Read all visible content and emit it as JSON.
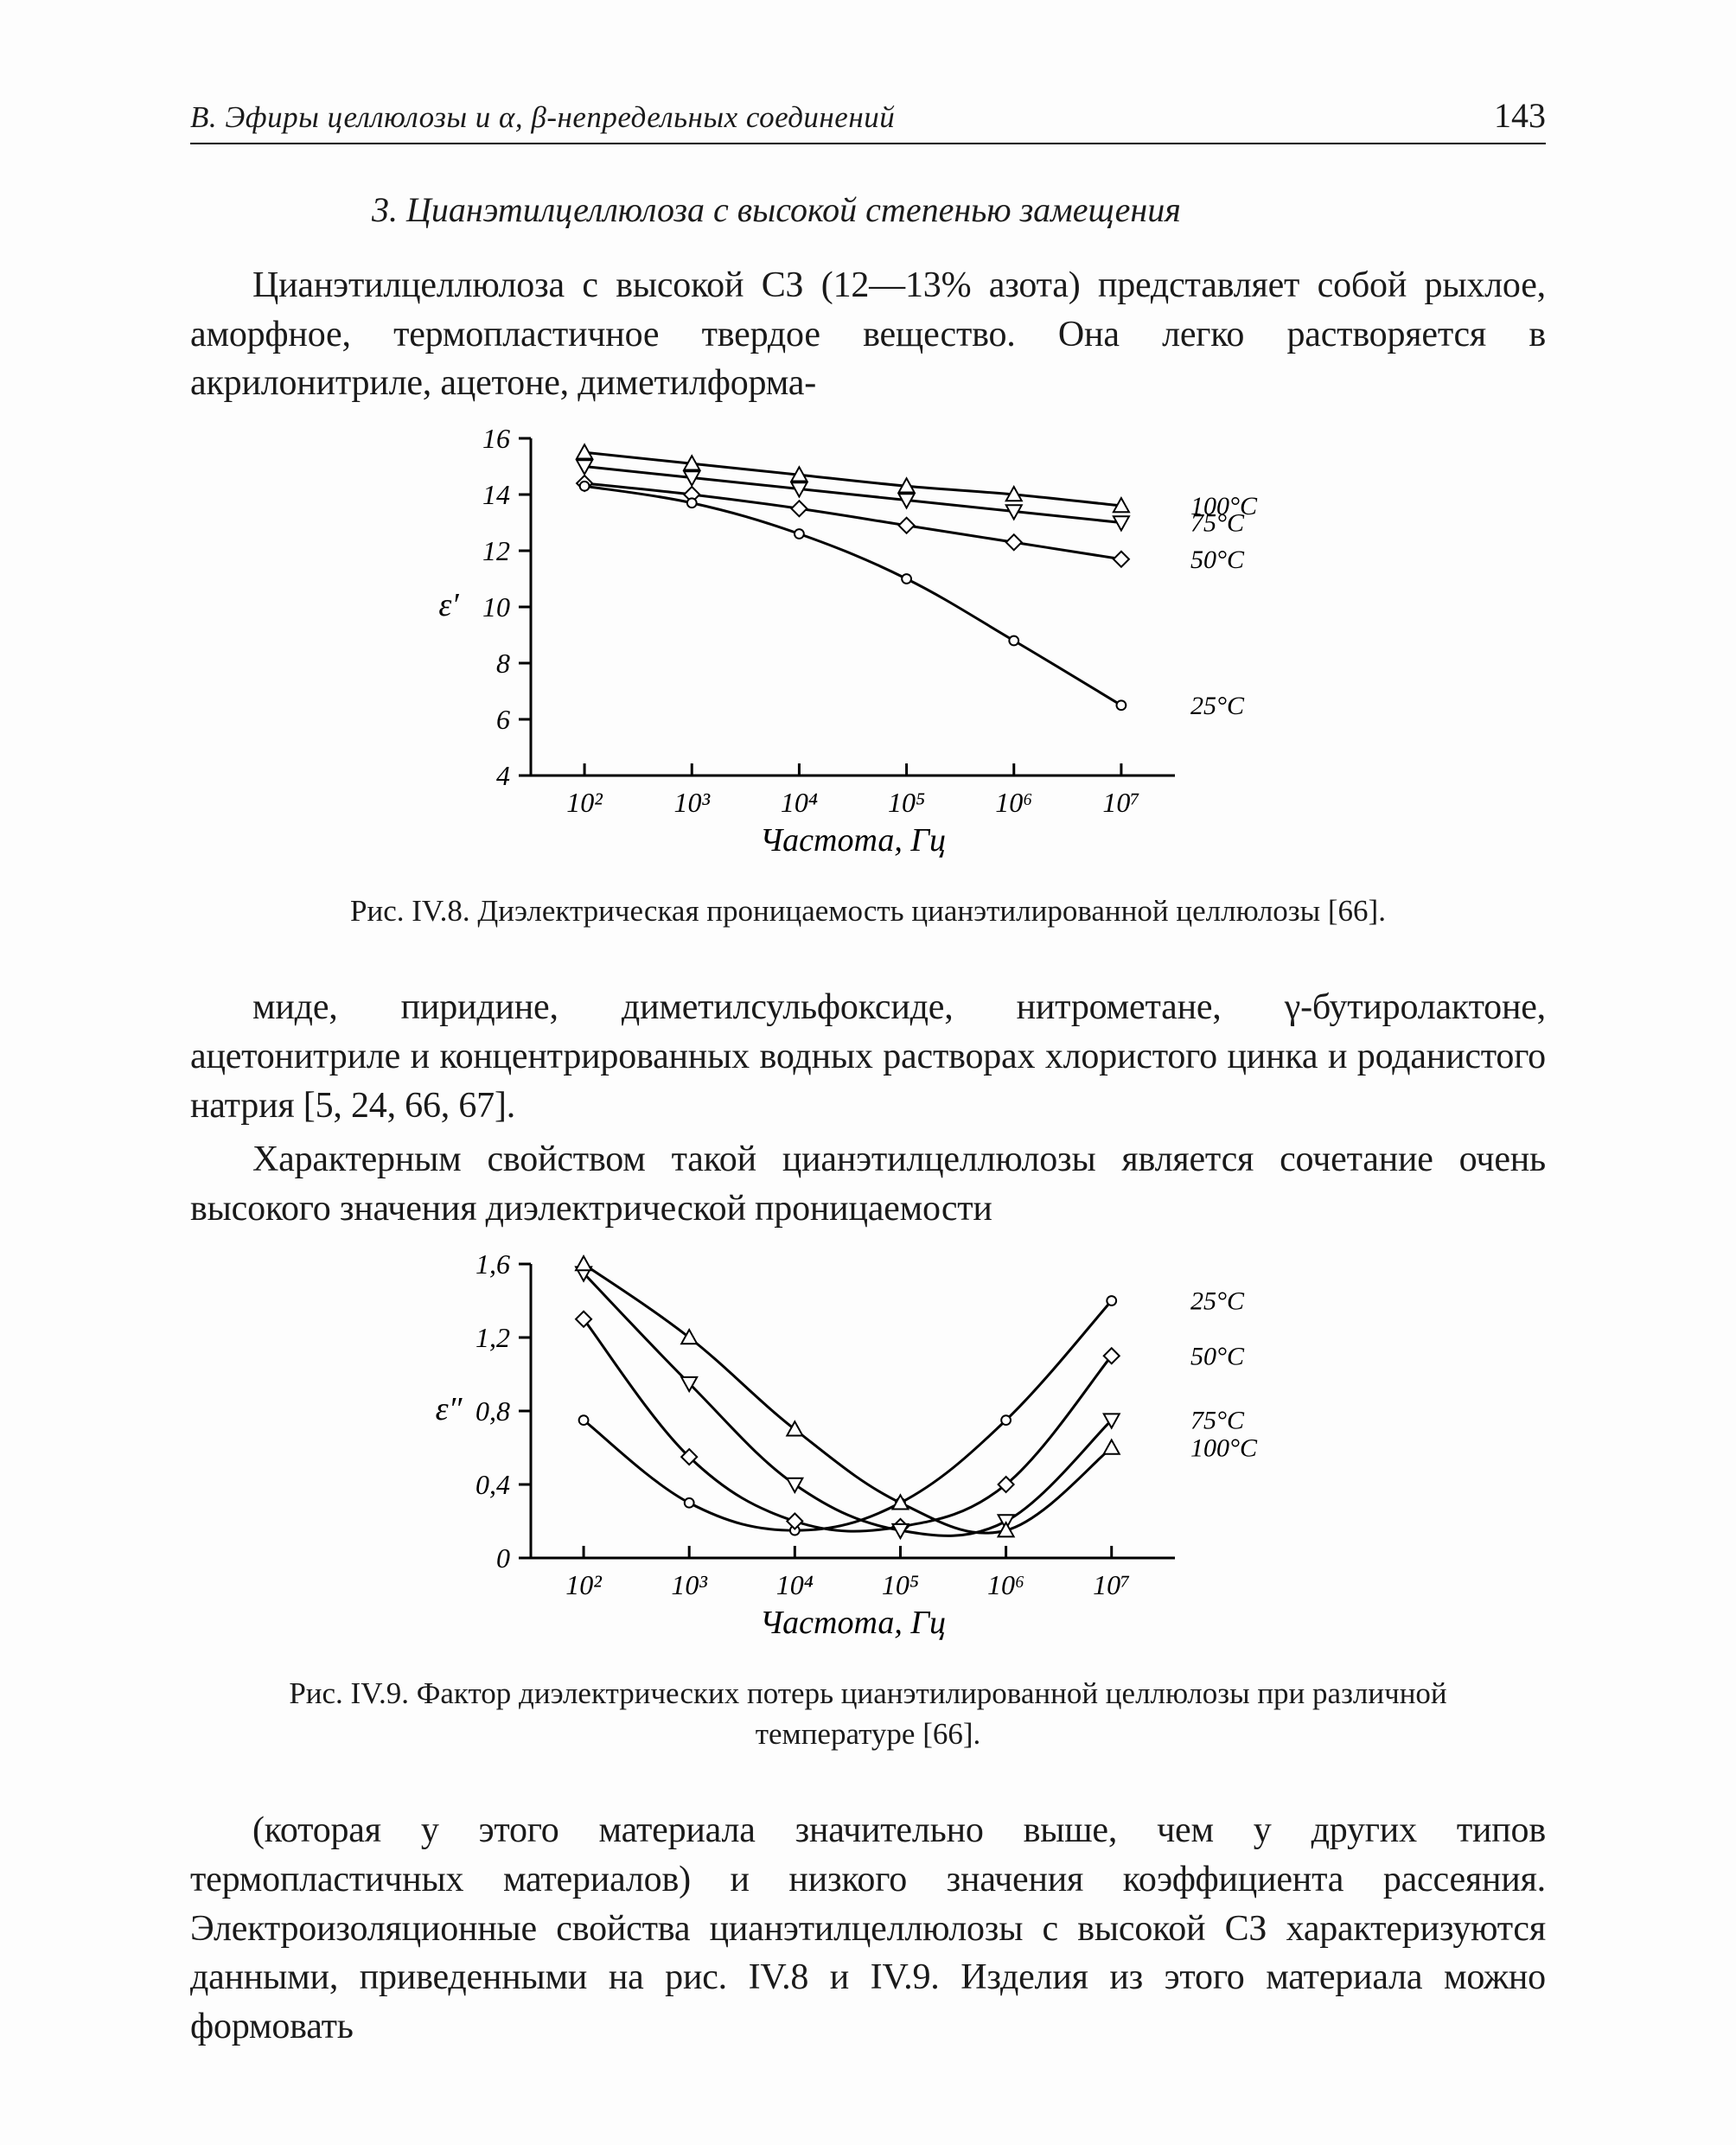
{
  "page_number": "143",
  "running_head": "B. Эфиры целлюлозы и α, β-непредельных соединений",
  "section_title": "3. Цианэтилцеллюлоза с высокой степенью замещения",
  "paragraph_1": "Цианэтилцеллюлоза с высокой СЗ (12—13% азота) представляет собой рыхлое, аморфное, термопластичное твердое вещество. Она легко растворяется в акрилонитриле, ацетоне, диметилформа-",
  "paragraph_2": "миде, пиридине, диметилсульфоксиде, нитрометане, γ-бутиролактоне, ацетонитриле и концентрированных водных растворах хлористого цинка и роданистого натрия [5, 24, 66, 67].",
  "paragraph_3": "Характерным свойством такой цианэтилцеллюлозы является сочетание очень высокого значения диэлектрической проницаемости",
  "paragraph_4": "(которая у этого материала значительно выше, чем у других типов термопластичных материалов) и низкого значения коэффициента рассеяния. Электроизоляционные свойства цианэтилцеллюлозы с высокой СЗ характеризуются данными, приведенными на рис. IV.8 и IV.9. Изделия из этого материала можно формовать",
  "fig1": {
    "caption": "Рис. IV.8. Диэлектрическая проницаемость цианэтилированной целлюлозы [66].",
    "x_label": "Частота, Гц",
    "y_label": "ε′",
    "x_ticks_labels": [
      "10²",
      "10³",
      "10⁴",
      "10⁵",
      "10⁶",
      "10⁷"
    ],
    "x_ticks_logvals": [
      2,
      3,
      4,
      5,
      6,
      7
    ],
    "y_ticks": [
      4,
      6,
      8,
      10,
      12,
      14,
      16
    ],
    "ylim": [
      4,
      16
    ],
    "xlim_log": [
      1.5,
      7.5
    ],
    "line_color": "#000000",
    "marker_stroke": "#000000",
    "marker_fill": "#ffffff",
    "background": "#ffffff",
    "series": [
      {
        "label": "100°C",
        "marker": "triangle-up",
        "data": [
          [
            2,
            15.5
          ],
          [
            3,
            15.1
          ],
          [
            4,
            14.7
          ],
          [
            5,
            14.3
          ],
          [
            6,
            14.0
          ],
          [
            7,
            13.6
          ]
        ]
      },
      {
        "label": "75°C",
        "marker": "triangle-down",
        "data": [
          [
            2,
            15.0
          ],
          [
            3,
            14.6
          ],
          [
            4,
            14.2
          ],
          [
            5,
            13.8
          ],
          [
            6,
            13.4
          ],
          [
            7,
            13.0
          ]
        ]
      },
      {
        "label": "50°C",
        "marker": "diamond",
        "data": [
          [
            2,
            14.4
          ],
          [
            3,
            14.0
          ],
          [
            4,
            13.5
          ],
          [
            5,
            12.9
          ],
          [
            6,
            12.3
          ],
          [
            7,
            11.7
          ]
        ]
      },
      {
        "label": "25°C",
        "marker": "circle",
        "data": [
          [
            2,
            14.3
          ],
          [
            3,
            13.7
          ],
          [
            4,
            12.6
          ],
          [
            5,
            11.0
          ],
          [
            6,
            8.8
          ],
          [
            7,
            6.5
          ]
        ]
      }
    ],
    "right_labels": [
      "100°C",
      "75°C",
      "50°C",
      "25°C"
    ],
    "fontsize_axis": 32,
    "fontsize_label": 38,
    "fontsize_series": 30
  },
  "fig2": {
    "caption": "Рис. IV.9. Фактор диэлектрических потерь цианэтилированной целлюлозы при различной температуре [66].",
    "x_label": "Частота, Гц",
    "y_label": "ε″",
    "x_ticks_labels": [
      "10²",
      "10³",
      "10⁴",
      "10⁵",
      "10⁶",
      "10⁷"
    ],
    "x_ticks_logvals": [
      2,
      3,
      4,
      5,
      6,
      7
    ],
    "y_ticks": [
      0,
      0.4,
      0.8,
      1.2,
      1.6
    ],
    "y_tick_labels": [
      "0",
      "0,4",
      "0,8",
      "1,2",
      "1,6"
    ],
    "ylim": [
      0,
      1.6
    ],
    "xlim_log": [
      1.5,
      7.6
    ],
    "line_color": "#000000",
    "marker_stroke": "#000000",
    "marker_fill": "#ffffff",
    "background": "#ffffff",
    "series": [
      {
        "label": "25°C",
        "marker": "circle",
        "data": [
          [
            2,
            0.75
          ],
          [
            3,
            0.3
          ],
          [
            4,
            0.15
          ],
          [
            5,
            0.3
          ],
          [
            6,
            0.75
          ],
          [
            7,
            1.4
          ]
        ]
      },
      {
        "label": "50°C",
        "marker": "diamond",
        "data": [
          [
            2,
            1.3
          ],
          [
            3,
            0.55
          ],
          [
            4,
            0.2
          ],
          [
            5,
            0.17
          ],
          [
            6,
            0.4
          ],
          [
            7,
            1.1
          ]
        ]
      },
      {
        "label": "75°C",
        "marker": "triangle-down",
        "data": [
          [
            2,
            1.55
          ],
          [
            3,
            0.95
          ],
          [
            4,
            0.4
          ],
          [
            5,
            0.15
          ],
          [
            6,
            0.2
          ],
          [
            7,
            0.75
          ]
        ]
      },
      {
        "label": "100°C",
        "marker": "triangle-up",
        "data": [
          [
            2,
            1.6
          ],
          [
            3,
            1.2
          ],
          [
            4,
            0.7
          ],
          [
            5,
            0.3
          ],
          [
            6,
            0.15
          ],
          [
            7,
            0.6
          ]
        ]
      }
    ],
    "right_labels": [
      "25°C",
      "50°C",
      "75°C",
      "100°C"
    ],
    "fontsize_axis": 32,
    "fontsize_label": 38,
    "fontsize_series": 30
  }
}
